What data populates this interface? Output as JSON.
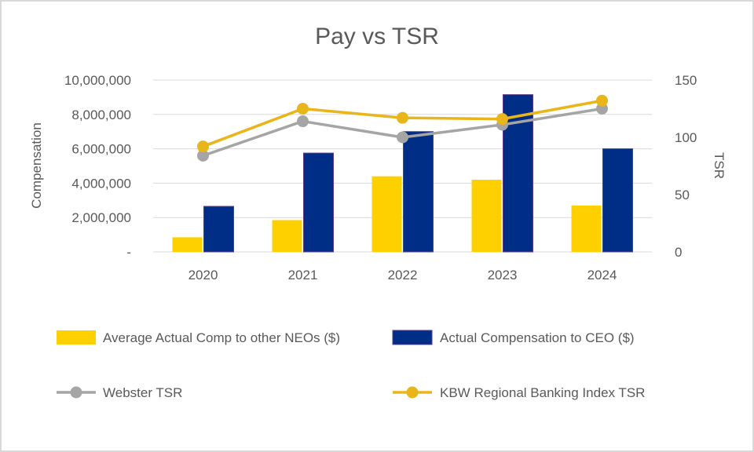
{
  "chart_data": {
    "type": "bar",
    "title": "Pay vs TSR",
    "categories": [
      "2020",
      "2021",
      "2022",
      "2023",
      "2024"
    ],
    "ylabel": "Compensation",
    "y2label": "TSR",
    "ylim": [
      0,
      10000000
    ],
    "y2lim": [
      0,
      150
    ],
    "yticks": [
      {
        "value": 0,
        "label": "-"
      },
      {
        "value": 2000000,
        "label": "2,000,000"
      },
      {
        "value": 4000000,
        "label": "4,000,000"
      },
      {
        "value": 6000000,
        "label": "6,000,000"
      },
      {
        "value": 8000000,
        "label": "8,000,000"
      },
      {
        "value": 10000000,
        "label": "10,000,000"
      }
    ],
    "y2ticks": [
      {
        "value": 0,
        "label": "0"
      },
      {
        "value": 50,
        "label": "50"
      },
      {
        "value": 100,
        "label": "100"
      },
      {
        "value": 150,
        "label": "150"
      }
    ],
    "grid": true,
    "legend_position": "bottom",
    "bar_series": [
      {
        "name": "Average Actual Comp to other NEOs ($)",
        "color": "#FFD000",
        "values": [
          850000,
          1850000,
          4400000,
          4200000,
          2700000
        ]
      },
      {
        "name": "Actual Compensation to CEO ($)",
        "color": "#002D85",
        "values": [
          2650000,
          5750000,
          7000000,
          9150000,
          6000000
        ]
      }
    ],
    "line_series": [
      {
        "name": "Webster TSR",
        "color": "#A5A5A5",
        "axis": "right",
        "values": [
          84,
          114,
          100,
          111,
          125
        ]
      },
      {
        "name": "KBW Regional Banking Index TSR",
        "color": "#E8B51A",
        "axis": "right",
        "values": [
          92,
          125,
          117,
          116,
          132
        ]
      }
    ]
  }
}
